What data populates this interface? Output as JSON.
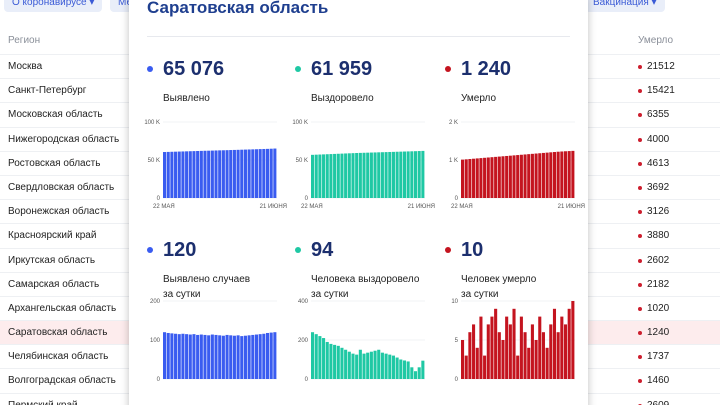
{
  "filters": [
    "О коронавирусе",
    "Ме",
    "Вакцинация"
  ],
  "table": {
    "header": {
      "region": "Регион",
      "mid": "о",
      "died": "Умерло"
    },
    "rows": [
      {
        "name": "Москва",
        "died": "21512"
      },
      {
        "name": "Санкт-Петербург",
        "died": "15421"
      },
      {
        "name": "Московская область",
        "died": "6355"
      },
      {
        "name": "Нижегородская область",
        "died": "4000"
      },
      {
        "name": "Ростовская область",
        "died": "4613"
      },
      {
        "name": "Свердловская область",
        "died": "3692"
      },
      {
        "name": "Воронежская область",
        "died": "3126"
      },
      {
        "name": "Красноярский край",
        "died": "3880"
      },
      {
        "name": "Иркутская область",
        "died": "2602"
      },
      {
        "name": "Самарская область",
        "died": "2182"
      },
      {
        "name": "Архангельская область",
        "died": "1020"
      },
      {
        "name": "Саратовская область",
        "died": "1240",
        "active": true
      },
      {
        "name": "Челябинская область",
        "died": "1737"
      },
      {
        "name": "Волгоградская область",
        "died": "1460"
      },
      {
        "name": "Пермский край",
        "died": "2609"
      }
    ]
  },
  "card": {
    "title": "Саратовская область",
    "blocks": [
      {
        "id": "confirmed",
        "value": "65 076",
        "label": "Выявлено",
        "color": "#3a5cf0"
      },
      {
        "id": "recovered",
        "value": "61 959",
        "label": "Выздоровело",
        "color": "#1fc8a4"
      },
      {
        "id": "deaths",
        "value": "1 240",
        "label": "Умерло",
        "color": "#c4141f"
      },
      {
        "id": "confirmed-day",
        "value": "120",
        "label": "Выявлено случаев\nза сутки",
        "color": "#3a5cf0"
      },
      {
        "id": "recovered-day",
        "value": "94",
        "label": "Человека выздоровело\nза сутки",
        "color": "#1fc8a4"
      },
      {
        "id": "deaths-day",
        "value": "10",
        "label": "Человек умерло\nза сутки",
        "color": "#c4141f"
      }
    ]
  },
  "chart_data": [
    {
      "type": "bar",
      "ylim": [
        0,
        100000
      ],
      "ytick_labels": [
        "100 K",
        "50 K",
        "0"
      ],
      "x_start": "22 МАЯ",
      "x_end": "21 ИЮНЯ",
      "color": "#3a5cf0",
      "values": [
        60500,
        60650,
        60800,
        60950,
        61100,
        61250,
        61400,
        61550,
        61700,
        61850,
        62000,
        62150,
        62250,
        62400,
        62550,
        62700,
        62800,
        62950,
        63100,
        63250,
        63400,
        63550,
        63700,
        63850,
        64000,
        64150,
        64350,
        64500,
        64650,
        64850,
        65076
      ]
    },
    {
      "type": "bar",
      "ylim": [
        0,
        100000
      ],
      "ytick_labels": [
        "100 K",
        "50 K",
        "0"
      ],
      "x_start": "22 МАЯ",
      "x_end": "21 ИЮНЯ",
      "color": "#1fc8a4",
      "values": [
        56800,
        57000,
        57200,
        57400,
        57600,
        57800,
        58000,
        58200,
        58400,
        58600,
        58800,
        59000,
        59200,
        59350,
        59500,
        59650,
        59800,
        59950,
        60100,
        60250,
        60400,
        60550,
        60700,
        60850,
        61000,
        61150,
        61300,
        61450,
        61600,
        61800,
        61959
      ]
    },
    {
      "type": "bar",
      "ylim": [
        0,
        2000
      ],
      "ytick_labels": [
        "2 K",
        "1 K",
        "0"
      ],
      "x_start": "22 МАЯ",
      "x_end": "21 ИЮНЯ",
      "color": "#c4141f",
      "values": [
        1010,
        1018,
        1026,
        1034,
        1042,
        1050,
        1058,
        1066,
        1074,
        1082,
        1090,
        1098,
        1106,
        1114,
        1122,
        1130,
        1138,
        1146,
        1154,
        1162,
        1170,
        1178,
        1186,
        1194,
        1202,
        1210,
        1218,
        1224,
        1230,
        1235,
        1240
      ]
    },
    {
      "type": "bar",
      "ylim": [
        0,
        200
      ],
      "ytick_labels": [
        "200",
        "100",
        "0"
      ],
      "color": "#3a5cf0",
      "values": [
        120,
        118,
        117,
        116,
        115,
        116,
        115,
        114,
        115,
        113,
        114,
        113,
        112,
        114,
        113,
        112,
        111,
        113,
        112,
        111,
        112,
        110,
        111,
        112,
        113,
        114,
        115,
        116,
        118,
        119,
        120
      ]
    },
    {
      "type": "bar",
      "ylim": [
        0,
        400
      ],
      "ytick_labels": [
        "400",
        "200",
        "0"
      ],
      "color": "#1fc8a4",
      "values": [
        240,
        230,
        220,
        210,
        190,
        180,
        175,
        170,
        160,
        150,
        140,
        130,
        125,
        150,
        130,
        135,
        140,
        145,
        150,
        135,
        130,
        125,
        120,
        110,
        100,
        95,
        90,
        60,
        40,
        60,
        94
      ]
    },
    {
      "type": "bar",
      "ylim": [
        0,
        10
      ],
      "ytick_labels": [
        "10",
        "5",
        "0"
      ],
      "color": "#c4141f",
      "values": [
        5,
        3,
        6,
        7,
        4,
        8,
        3,
        7,
        8,
        9,
        6,
        5,
        8,
        7,
        9,
        3,
        8,
        6,
        4,
        7,
        5,
        8,
        6,
        4,
        7,
        9,
        6,
        8,
        7,
        9,
        10
      ]
    }
  ]
}
